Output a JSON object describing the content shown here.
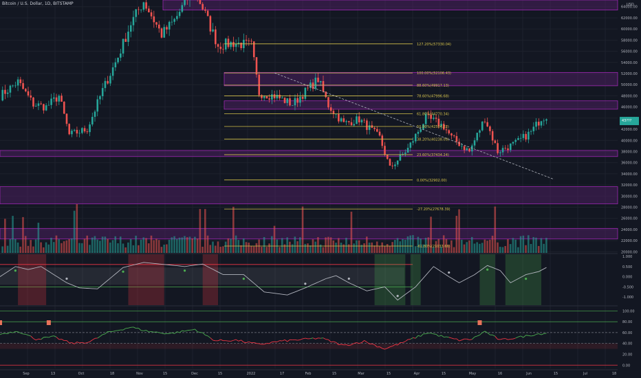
{
  "header": {
    "title": "Bitcoin / U.S. Dollar, 1D, BITSTAMP",
    "currency": "USD"
  },
  "colors": {
    "bg": "#131722",
    "up": "#26a69a",
    "down": "#ef5350",
    "grid": "#1e222d",
    "fib_line": "#d4c24a",
    "zone_fill": "#4a1f5e",
    "zone_line": "#9c27b0",
    "rsi_up": "#4caf50",
    "rsi_down": "#f23645",
    "osc_line": "#b2b5be",
    "price_tag": "#26a69a"
  },
  "chart_data": [
    {
      "type": "candlestick",
      "name": "price",
      "ylabel": "USD",
      "ylim": [
        19800,
        65200
      ],
      "y_ticks": [
        64000,
        62000,
        60000,
        58000,
        56000,
        54000,
        52000,
        50000,
        48000,
        46000,
        44000,
        42000,
        40000,
        38000,
        36000,
        34000,
        32000,
        30000,
        28000,
        26000,
        24000,
        22000,
        20000
      ],
      "x_tick_labels": [
        "Sep",
        "13",
        "Oct",
        "18",
        "Nov",
        "15",
        "Dec",
        "15",
        "2022",
        "17",
        "Feb",
        "15",
        "Mar",
        "15",
        "Apr",
        "15",
        "May",
        "16",
        "Jun",
        "15",
        "Jul",
        "18"
      ],
      "last_price_label": "43???",
      "anchor_points": [
        [
          "08-25",
          48000
        ],
        [
          "09-01",
          50500
        ],
        [
          "09-07",
          46500
        ],
        [
          "09-12",
          46000
        ],
        [
          "09-17",
          48000
        ],
        [
          "09-21",
          41000
        ],
        [
          "09-28",
          42000
        ],
        [
          "10-04",
          49000
        ],
        [
          "10-10",
          55000
        ],
        [
          "10-15",
          61000
        ],
        [
          "10-20",
          65000
        ],
        [
          "10-27",
          59000
        ],
        [
          "11-01",
          61500
        ],
        [
          "11-08",
          67000
        ],
        [
          "11-10",
          66000
        ],
        [
          "11-18",
          57000
        ],
        [
          "11-24",
          57500
        ],
        [
          "12-01",
          57000
        ],
        [
          "12-04",
          48500
        ],
        [
          "12-10",
          48000
        ],
        [
          "12-17",
          46500
        ],
        [
          "12-27",
          51000
        ],
        [
          "12-31",
          46300
        ],
        [
          "01-06",
          43000
        ],
        [
          "01-12",
          43800
        ],
        [
          "01-20",
          40500
        ],
        [
          "01-24",
          35000
        ],
        [
          "01-31",
          38500
        ],
        [
          "02-07",
          44000
        ],
        [
          "02-10",
          43500
        ],
        [
          "02-14",
          42500
        ],
        [
          "02-17",
          40500
        ],
        [
          "02-24",
          38000
        ],
        [
          "03-02",
          44000
        ],
        [
          "03-07",
          38000
        ],
        [
          "03-14",
          39500
        ],
        [
          "03-20",
          41500
        ],
        [
          "03-24",
          44000
        ],
        [
          "03-26",
          44400
        ]
      ],
      "range_start": "2021-08-25",
      "range_end": "2022-03-26"
    },
    {
      "type": "fibonacci",
      "name": "fib-retracement",
      "levels": [
        {
          "label": "127.20%(57330.04)",
          "value": 57330.04
        },
        {
          "label": "100.00%(52106.43)",
          "value": 52106.43
        },
        {
          "label": "88.60%(49917.13)",
          "value": 49917.13
        },
        {
          "label": "78.60%(47996.68)",
          "value": 47996.68
        },
        {
          "label": "61.80%(44770.34)",
          "value": 44770.34
        },
        {
          "label": "50.00%(42504.22)",
          "value": 42504.22
        },
        {
          "label": "38.20%(40238.09)",
          "value": 40238.09
        },
        {
          "label": "23.60%(37434.24)",
          "value": 37434.24
        },
        {
          "label": "0.00%(32902.00)",
          "value": 32902.0
        },
        {
          "label": "-27.20%(27678.39)",
          "value": 27678.39
        },
        {
          "label": "-61.80%(21033.66)",
          "value": 21033.66
        }
      ],
      "zones": [
        [
          63400,
          65200
        ],
        [
          49800,
          52200
        ],
        [
          45600,
          47100
        ],
        [
          37100,
          38200
        ],
        [
          28600,
          31700
        ],
        [
          22300,
          24200
        ]
      ],
      "trendline": {
        "from": [
          "2021-12-10",
          52100
        ],
        "to": [
          "2022-03-29",
          33000
        ]
      }
    },
    {
      "type": "oscillator",
      "name": "momentum-oscillator",
      "ylim": [
        -1.4,
        1.1
      ],
      "y_ticks": [
        1.0,
        0.5,
        0.0,
        -0.5,
        -1.0
      ],
      "y_tick_labels": [
        "1.000",
        "0.500",
        "0.000",
        "-0.500",
        "-1.000"
      ],
      "anchor_points": [
        [
          "08-25",
          0.0
        ],
        [
          "08-31",
          0.5
        ],
        [
          "09-05",
          0.35
        ],
        [
          "09-10",
          0.5
        ],
        [
          "09-20",
          -0.3
        ],
        [
          "09-25",
          -0.55
        ],
        [
          "10-02",
          -0.6
        ],
        [
          "10-12",
          0.45
        ],
        [
          "10-20",
          0.7
        ],
        [
          "10-28",
          0.6
        ],
        [
          "11-05",
          0.5
        ],
        [
          "11-12",
          0.62
        ],
        [
          "11-20",
          0.1
        ],
        [
          "11-28",
          0.1
        ],
        [
          "12-06",
          -0.75
        ],
        [
          "12-15",
          -0.9
        ],
        [
          "12-22",
          -0.55
        ],
        [
          "12-30",
          -0.1
        ],
        [
          "01-03",
          0.05
        ],
        [
          "01-08",
          -0.3
        ],
        [
          "01-15",
          -0.7
        ],
        [
          "01-22",
          -0.5
        ],
        [
          "01-27",
          -1.15
        ],
        [
          "02-03",
          -0.5
        ],
        [
          "02-10",
          0.5
        ],
        [
          "02-16",
          0.0
        ],
        [
          "02-20",
          -0.3
        ],
        [
          "02-26",
          0.1
        ],
        [
          "03-03",
          0.55
        ],
        [
          "03-08",
          0.3
        ],
        [
          "03-12",
          -0.3
        ],
        [
          "03-18",
          0.1
        ],
        [
          "03-23",
          0.25
        ],
        [
          "03-26",
          0.45
        ]
      ]
    },
    {
      "type": "line",
      "name": "rsi",
      "ylim": [
        -6,
        108
      ],
      "y_ticks": [
        100,
        80,
        60,
        40,
        20,
        0
      ],
      "y_tick_labels": [
        "100.00",
        "80.00",
        "60.00",
        "40.00",
        "20.00",
        "0.00"
      ],
      "anchor_points": [
        [
          "08-25",
          57
        ],
        [
          "09-01",
          63
        ],
        [
          "09-08",
          48
        ],
        [
          "09-15",
          52
        ],
        [
          "09-22",
          40
        ],
        [
          "09-29",
          43
        ],
        [
          "10-06",
          60
        ],
        [
          "10-15",
          70
        ],
        [
          "10-22",
          62
        ],
        [
          "10-30",
          58
        ],
        [
          "11-09",
          66
        ],
        [
          "11-17",
          45
        ],
        [
          "11-25",
          46
        ],
        [
          "12-04",
          38
        ],
        [
          "12-12",
          44
        ],
        [
          "12-20",
          47
        ],
        [
          "12-28",
          50
        ],
        [
          "01-06",
          36
        ],
        [
          "01-14",
          44
        ],
        [
          "01-22",
          30
        ],
        [
          "01-28",
          40
        ],
        [
          "02-08",
          60
        ],
        [
          "02-14",
          52
        ],
        [
          "02-20",
          46
        ],
        [
          "02-25",
          48
        ],
        [
          "03-02",
          62
        ],
        [
          "03-08",
          46
        ],
        [
          "03-16",
          52
        ],
        [
          "03-22",
          57
        ],
        [
          "03-26",
          59
        ]
      ]
    }
  ]
}
